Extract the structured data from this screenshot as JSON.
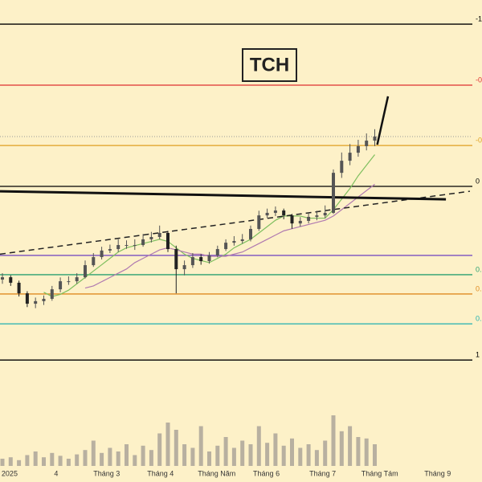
{
  "chart_data": {
    "type": "candlestick",
    "title": "TCH",
    "ylim": [
      8,
      30
    ],
    "xlim": [
      -0.29,
      57.96
    ],
    "xticks": [
      {
        "value": 0.87,
        "label": "2025"
      },
      {
        "value": 6.5,
        "label": "4"
      },
      {
        "value": 12.6,
        "label": "Tháng 3"
      },
      {
        "value": 19.1,
        "label": "Tháng 4"
      },
      {
        "value": 25.9,
        "label": "Tháng Năm"
      },
      {
        "value": 31.9,
        "label": "Tháng 6"
      },
      {
        "value": 38.7,
        "label": "Tháng 7"
      },
      {
        "value": 45.6,
        "label": "Tháng Tám"
      },
      {
        "value": 52.6,
        "label": "Tháng 9"
      }
    ],
    "up_color": "#555555",
    "down_color": "#222222",
    "open": [
      16.8,
      16.91,
      16.65,
      16.15,
      15.66,
      15.78,
      15.89,
      16.34,
      16.72,
      16.72,
      16.91,
      17.48,
      17.86,
      18.17,
      18.24,
      18.43,
      18.43,
      18.43,
      18.7,
      18.81,
      19.0,
      18.24,
      17.29,
      17.48,
      17.86,
      17.67,
      17.94,
      18.24,
      18.54,
      18.62,
      18.7,
      19.19,
      19.83,
      19.95,
      20.06,
      19.83,
      19.45,
      19.57,
      19.76,
      19.83,
      19.95,
      21.84,
      22.41,
      22.79,
      23.1,
      23.36
    ],
    "high": [
      17.1,
      17.0,
      16.75,
      16.25,
      15.95,
      16.05,
      16.5,
      16.9,
      16.95,
      17.1,
      17.7,
      18.05,
      18.35,
      18.45,
      18.7,
      18.65,
      18.7,
      18.95,
      19.05,
      19.35,
      19.1,
      18.4,
      17.7,
      18.05,
      18.0,
      18.1,
      18.4,
      18.7,
      18.85,
      18.95,
      19.35,
      20.05,
      20.15,
      20.25,
      20.15,
      19.9,
      19.75,
      19.95,
      20.05,
      20.3,
      22.0,
      22.8,
      23.2,
      23.4,
      23.7,
      23.9
    ],
    "low": [
      16.6,
      16.5,
      16.0,
      15.5,
      15.45,
      15.6,
      15.8,
      16.2,
      16.55,
      16.6,
      16.85,
      17.4,
      17.75,
      18.05,
      18.1,
      18.25,
      18.2,
      18.35,
      18.55,
      18.7,
      18.1,
      16.15,
      17.0,
      17.35,
      17.5,
      17.55,
      17.85,
      18.15,
      18.4,
      18.5,
      18.6,
      19.1,
      19.7,
      19.8,
      19.65,
      19.2,
      19.3,
      19.45,
      19.6,
      19.7,
      19.9,
      21.6,
      22.2,
      22.6,
      22.9,
      23.1
    ],
    "close": [
      16.91,
      16.65,
      16.15,
      15.66,
      15.78,
      15.89,
      16.34,
      16.72,
      16.72,
      16.91,
      17.48,
      17.86,
      18.17,
      18.24,
      18.43,
      18.43,
      18.43,
      18.7,
      18.81,
      19.0,
      18.24,
      17.29,
      17.48,
      17.86,
      17.67,
      17.94,
      18.24,
      18.54,
      18.62,
      18.7,
      19.19,
      19.83,
      19.95,
      20.06,
      19.83,
      19.45,
      19.57,
      19.76,
      19.83,
      19.95,
      21.84,
      22.41,
      22.79,
      23.1,
      23.36,
      23.55
    ],
    "volume_lim": [
      0,
      100
    ],
    "volume_color": "#b8b0a0",
    "volume": [
      10,
      12,
      8,
      15,
      20,
      12,
      18,
      14,
      10,
      16,
      22,
      35,
      18,
      25,
      20,
      30,
      15,
      28,
      22,
      45,
      60,
      50,
      30,
      25,
      55,
      20,
      28,
      40,
      25,
      35,
      30,
      55,
      32,
      45,
      28,
      38,
      25,
      30,
      22,
      35,
      70,
      48,
      55,
      40,
      38,
      30
    ],
    "moving_averages": [
      {
        "color": "#7fbf5f",
        "values": [
          null,
          null,
          null,
          null,
          null,
          16.2,
          16.0,
          16.1,
          16.3,
          16.6,
          16.9,
          17.2,
          17.5,
          17.8,
          18.1,
          18.3,
          18.4,
          18.5,
          18.6,
          18.7,
          18.6,
          18.3,
          18.0,
          17.8,
          17.7,
          17.6,
          17.8,
          18.0,
          18.3,
          18.5,
          18.7,
          19.0,
          19.3,
          19.6,
          19.8,
          19.8,
          19.8,
          19.7,
          19.7,
          19.7,
          20.1,
          20.6,
          21.1,
          21.7,
          22.2,
          22.7
        ]
      },
      {
        "color": "#b07ab0",
        "values": [
          null,
          null,
          null,
          null,
          null,
          null,
          null,
          null,
          null,
          null,
          16.4,
          16.5,
          16.7,
          16.9,
          17.1,
          17.3,
          17.6,
          17.8,
          18.0,
          18.2,
          18.3,
          18.2,
          18.1,
          18.0,
          18.0,
          17.9,
          17.9,
          17.9,
          18.0,
          18.1,
          18.3,
          18.5,
          18.7,
          18.9,
          19.1,
          19.2,
          19.3,
          19.4,
          19.5,
          19.6,
          19.8,
          20.1,
          20.4,
          20.7,
          21.0,
          21.3
        ]
      }
    ],
    "levels": [
      {
        "value": 28.86,
        "label": "-1",
        "color": "#000000"
      },
      {
        "value": 25.98,
        "label": "-0",
        "color": "#e03030"
      },
      {
        "value": 23.13,
        "label": "-0",
        "color": "#e0a020"
      },
      {
        "value": 21.2,
        "label": "0",
        "color": "#000000"
      },
      {
        "value": 17.94,
        "label": null,
        "color": "#7a4fc0"
      },
      {
        "value": 17.03,
        "label": "0.",
        "color": "#2aa070"
      },
      {
        "value": 16.12,
        "label": "0.",
        "color": "#e08a20"
      },
      {
        "value": 14.71,
        "label": "0.",
        "color": "#20b0b0"
      },
      {
        "value": 13.0,
        "label": "1",
        "color": "#000000"
      }
    ],
    "trendlines": [
      {
        "color": "#222222",
        "dash": true,
        "width": 1.5,
        "x": [
          -0.29,
          56.5
        ],
        "y": [
          18.0,
          20.97
        ]
      },
      {
        "color": "#111111",
        "dash": false,
        "width": 3,
        "x": [
          -0.29,
          53.6
        ],
        "y": [
          20.97,
          20.59
        ]
      },
      {
        "color": "#111111",
        "dash": false,
        "width": 2.5,
        "x": [
          45.3,
          46.6
        ],
        "y": [
          23.17,
          25.45
        ]
      }
    ]
  }
}
